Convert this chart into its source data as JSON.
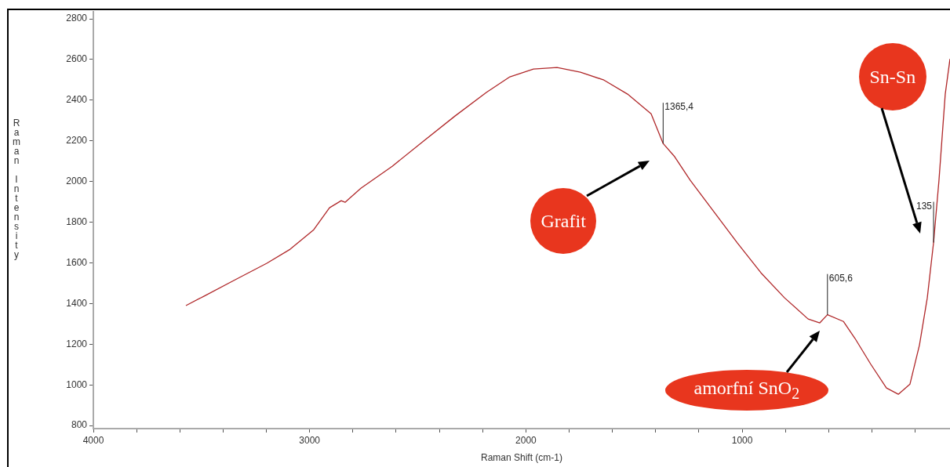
{
  "chart_data": {
    "type": "line",
    "xlabel": "Raman Shift (cm-1)",
    "ylabel": "Raman Intensity",
    "x": [
      3572,
      3489,
      3344,
      3198,
      3090,
      2981,
      2908,
      2854,
      2836,
      2763,
      2618,
      2473,
      2328,
      2183,
      2074,
      1965,
      1856,
      1748,
      1639,
      1530,
      1421,
      1365.4,
      1312,
      1240,
      1131,
      1022,
      913,
      804,
      695,
      641,
      605.6,
      532,
      478,
      405,
      333,
      278,
      224,
      180,
      144,
      115,
      90,
      61,
      39
    ],
    "series": [
      {
        "color": "#b0282a",
        "values": [
          1390,
          1436,
          1517,
          1598,
          1667,
          1763,
          1871,
          1906,
          1898,
          1967,
          2075,
          2199,
          2322,
          2438,
          2515,
          2553,
          2561,
          2538,
          2499,
          2430,
          2333,
          2187,
          2122,
          2006,
          1852,
          1698,
          1551,
          1428,
          1324,
          1305,
          1345,
          1312,
          1228,
          1101,
          985,
          954,
          1004,
          1197,
          1428,
          1700,
          2006,
          2430,
          2603
        ]
      }
    ],
    "xlim": [
      4000,
      39
    ],
    "ylim": [
      785,
      2835
    ],
    "xticks": [
      4000,
      {
        "value": 3800,
        "label": null
      },
      {
        "value": 3600,
        "label": null
      },
      {
        "value": 3400,
        "label": null
      },
      {
        "value": 3200,
        "label": null
      },
      3000,
      {
        "value": 2800,
        "label": null
      },
      {
        "value": 2600,
        "label": null
      },
      {
        "value": 2400,
        "label": null
      },
      {
        "value": 2200,
        "label": null
      },
      2000,
      {
        "value": 1800,
        "label": null
      },
      {
        "value": 1600,
        "label": null
      },
      {
        "value": 1400,
        "label": null
      },
      {
        "value": 1200,
        "label": null
      },
      1000,
      {
        "value": 800,
        "label": null
      },
      {
        "value": 600,
        "label": null
      },
      {
        "value": 400,
        "label": null
      },
      {
        "value": 200,
        "label": null
      }
    ],
    "yticks": [
      800,
      1000,
      1200,
      1400,
      1600,
      1800,
      2000,
      2200,
      2400,
      2600,
      2800
    ],
    "grid": false,
    "legend": false,
    "marker": "none",
    "line_style": "solid",
    "annotations": [
      {
        "text": "1365,4",
        "x": 1365.4,
        "y": 2187
      },
      {
        "text": "605,6",
        "x": 605.6,
        "y": 1345
      },
      {
        "text": "135",
        "x": 115,
        "y": 1700
      },
      "Grafit",
      "amorfní SnO$_{2}$",
      "Sn-Sn"
    ]
  }
}
